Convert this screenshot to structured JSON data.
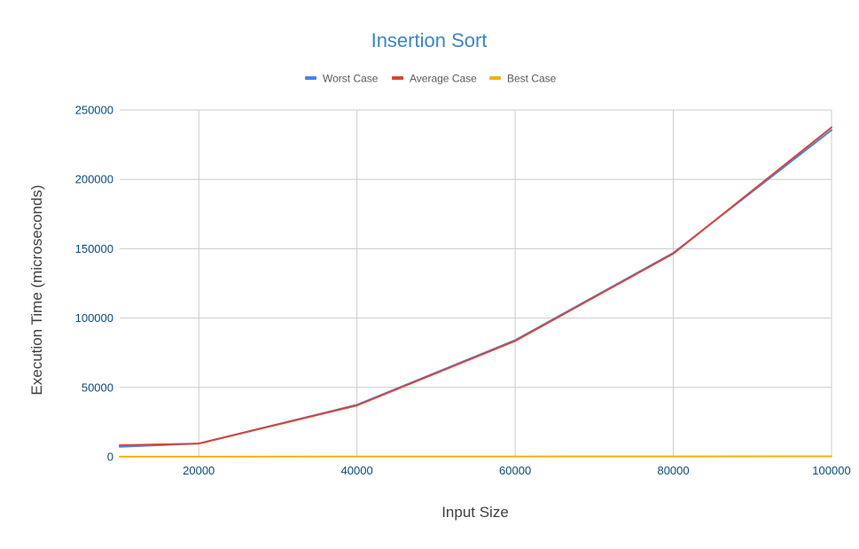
{
  "chart_data": {
    "type": "line",
    "title": "Insertion Sort",
    "xlabel": "Input Size",
    "ylabel": "Execution Time (microseconds)",
    "x": [
      10000,
      20000,
      40000,
      60000,
      80000,
      100000
    ],
    "x_ticks": [
      20000,
      40000,
      60000,
      80000,
      100000
    ],
    "y_ticks": [
      0,
      50000,
      100000,
      150000,
      200000,
      250000
    ],
    "xlim": [
      10000,
      100000
    ],
    "ylim": [
      0,
      250000
    ],
    "grid": true,
    "legend_position": "top",
    "series": [
      {
        "name": "Worst Case",
        "color": "#4285f4",
        "values": [
          7200,
          9500,
          37500,
          84000,
          147000,
          235500
        ]
      },
      {
        "name": "Average Case",
        "color": "#db4437",
        "values": [
          8300,
          9500,
          37000,
          83500,
          146500,
          237500
        ]
      },
      {
        "name": "Best Case",
        "color": "#f4b400",
        "values": [
          50,
          80,
          150,
          200,
          250,
          300
        ]
      }
    ],
    "colors": {
      "title": "#3d85c6",
      "tick_labels": "#0b4a7a",
      "grid": "#cccccc"
    }
  }
}
